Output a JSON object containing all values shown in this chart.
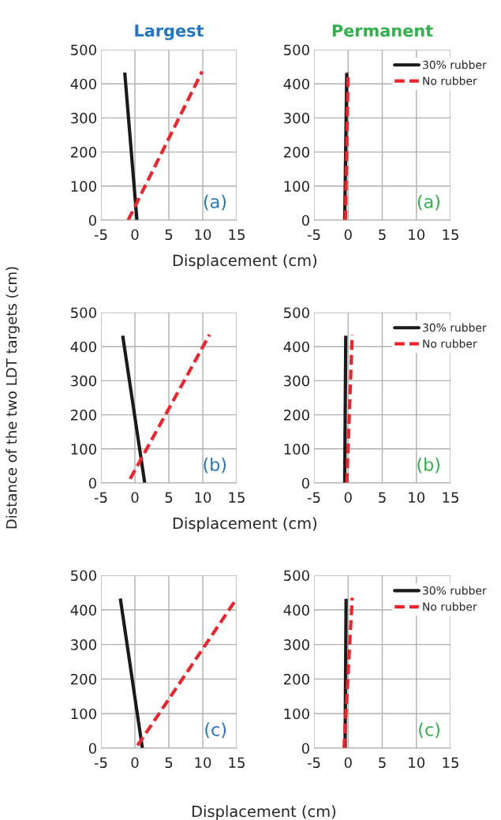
{
  "chart_data": [
    {
      "type": "line",
      "title": "Largest",
      "xlim": [
        -5,
        15
      ],
      "xticks": [
        -5,
        0,
        5,
        10,
        15
      ],
      "ylim": [
        0,
        500
      ],
      "yticks": [
        0,
        100,
        200,
        300,
        400,
        500
      ],
      "grid": true,
      "xlabel": "Displacement (cm)",
      "annotations": [
        "(a)"
      ],
      "series": [
        {
          "color": "#1a1a1a",
          "line_style": "solid",
          "x": [
            0.3,
            -1.5
          ],
          "values": [
            0,
            433
          ]
        },
        {
          "color": "#f0222a",
          "line_style": "dashed",
          "x": [
            -1.0,
            9.9
          ],
          "values": [
            0,
            436
          ]
        }
      ]
    },
    {
      "type": "line",
      "title": "Permanent",
      "xlim": [
        -5,
        15
      ],
      "xticks": [
        -5,
        0,
        5,
        10,
        15
      ],
      "ylim": [
        0,
        500
      ],
      "yticks": [
        0,
        100,
        200,
        300,
        400,
        500
      ],
      "grid": true,
      "legend": "top right",
      "annotations": [
        "(a)"
      ],
      "series": [
        {
          "name": "30% rubber",
          "color": "#1a1a1a",
          "line_style": "solid",
          "x": [
            -0.5,
            -0.2
          ],
          "values": [
            0,
            432
          ]
        },
        {
          "name": "No rubber",
          "color": "#f0222a",
          "line_style": "dashed",
          "x": [
            -0.4,
            0.0
          ],
          "values": [
            0,
            435
          ]
        }
      ]
    },
    {
      "type": "line",
      "xlim": [
        -5,
        15
      ],
      "xticks": [
        -5,
        0,
        5,
        10,
        15
      ],
      "ylim": [
        0,
        500
      ],
      "yticks": [
        0,
        100,
        200,
        300,
        400,
        500
      ],
      "grid": true,
      "xlabel": "Displacement (cm)",
      "ylabel": "Distance of the two LDT targets (cm)",
      "annotations": [
        "(b)"
      ],
      "series": [
        {
          "color": "#1a1a1a",
          "line_style": "solid",
          "x": [
            1.45,
            -1.8
          ],
          "values": [
            0,
            432
          ]
        },
        {
          "color": "#f0222a",
          "line_style": "dashed",
          "x": [
            -0.7,
            11.0
          ],
          "values": [
            12,
            435
          ]
        }
      ]
    },
    {
      "type": "line",
      "xlim": [
        -5,
        15
      ],
      "xticks": [
        -5,
        0,
        5,
        10,
        15
      ],
      "ylim": [
        0,
        500
      ],
      "yticks": [
        0,
        100,
        200,
        300,
        400,
        500
      ],
      "grid": true,
      "legend": "top right",
      "annotations": [
        "(b)"
      ],
      "series": [
        {
          "name": "30% rubber",
          "color": "#1a1a1a",
          "line_style": "solid",
          "x": [
            -0.5,
            -0.35
          ],
          "values": [
            0,
            432
          ]
        },
        {
          "name": "No rubber",
          "color": "#f0222a",
          "line_style": "dashed",
          "x": [
            -0.2,
            0.6
          ],
          "values": [
            0,
            435
          ]
        }
      ]
    },
    {
      "type": "line",
      "xlim": [
        -5,
        15
      ],
      "xticks": [
        -5,
        0,
        5,
        10,
        15
      ],
      "ylim": [
        0,
        500
      ],
      "yticks": [
        0,
        100,
        200,
        300,
        400,
        500
      ],
      "grid": true,
      "xlabel": "Displacement (cm)",
      "annotations": [
        "(c)"
      ],
      "series": [
        {
          "color": "#1a1a1a",
          "line_style": "solid",
          "x": [
            1.1,
            -2.15
          ],
          "values": [
            0,
            433
          ]
        },
        {
          "color": "#f0222a",
          "line_style": "dashed",
          "x": [
            0.4,
            15
          ],
          "values": [
            8,
            433
          ]
        }
      ]
    },
    {
      "type": "line",
      "xlim": [
        -5,
        15
      ],
      "xticks": [
        -5,
        0,
        5,
        10,
        15
      ],
      "ylim": [
        0,
        500
      ],
      "yticks": [
        0,
        100,
        200,
        300,
        400,
        500
      ],
      "grid": true,
      "legend": "top right",
      "annotations": [
        "(c)"
      ],
      "series": [
        {
          "name": "30% rubber",
          "color": "#1a1a1a",
          "line_style": "solid",
          "x": [
            -0.45,
            -0.3
          ],
          "values": [
            0,
            432
          ]
        },
        {
          "name": "No rubber",
          "color": "#f0222a",
          "line_style": "dashed",
          "x": [
            -0.6,
            0.6
          ],
          "values": [
            0,
            435
          ]
        }
      ]
    }
  ]
}
